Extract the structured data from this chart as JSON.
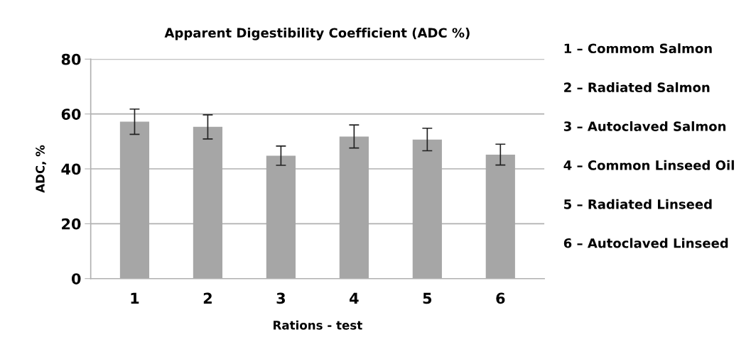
{
  "chart_data": {
    "type": "bar",
    "title": "Apparent Digestibility Coefficient (ADC %)",
    "xlabel": "Rations - test",
    "ylabel": "ADC, %",
    "categories": [
      "1",
      "2",
      "3",
      "4",
      "5",
      "6"
    ],
    "values": [
      57.2,
      55.3,
      44.8,
      51.8,
      50.7,
      45.2
    ],
    "errors": [
      4.6,
      4.4,
      3.5,
      4.2,
      4.1,
      3.8
    ],
    "color": "#a6a6a6",
    "ylim": [
      0,
      80
    ],
    "yticks": [
      0,
      20,
      40,
      60,
      80
    ],
    "grid": "y",
    "legend": false,
    "annotations": [
      "1 – Commom Salmon",
      "2 – Radiated Salmon",
      "3 – Autoclaved Salmon",
      "4 – Common Linseed Oil",
      "5 – Radiated Linseed",
      "6 – Autoclaved Linseed"
    ]
  }
}
